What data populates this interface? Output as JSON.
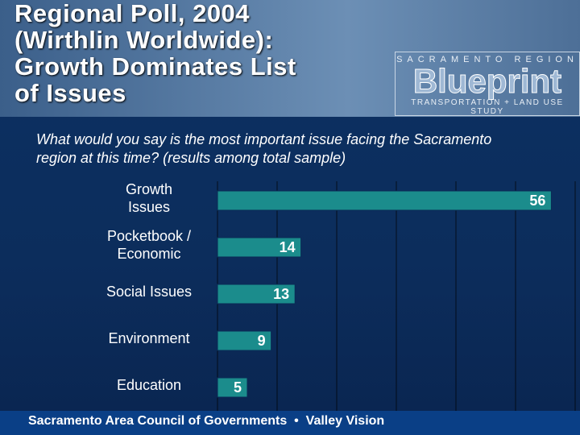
{
  "header": {
    "title": "Regional Poll, 2004\n(Wirthlin Worldwide):\nGrowth Dominates List\nof Issues",
    "logo": {
      "top": "SACRAMENTO REGION",
      "name": "Blueprint",
      "bottom": "TRANSPORTATION + LAND USE STUDY"
    }
  },
  "chart_data": {
    "type": "hbar",
    "subtitle": "What would you say is the most important issue facing the Sacramento region at this time? (results among total sample)",
    "categories": [
      "Growth\nIssues",
      "Pocketbook /\nEconomic",
      "Social Issues",
      "Environment",
      "Education"
    ],
    "values": [
      56,
      14,
      13,
      9,
      5
    ],
    "color": "#1b8c8c",
    "xlim": [
      0,
      60
    ],
    "xticks": [
      0,
      10,
      20,
      30,
      40,
      50,
      60
    ],
    "grid": true
  },
  "footer": {
    "text": "Sacramento Area Council of Governments  •  Valley Vision"
  }
}
